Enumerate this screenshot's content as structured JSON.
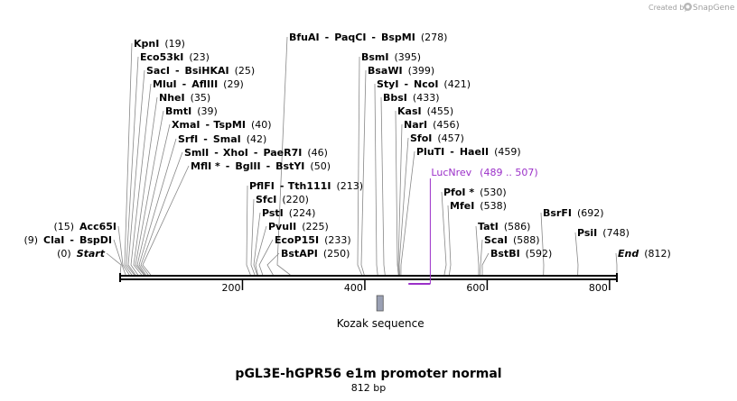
{
  "header": {
    "created_by": "Created by",
    "brand": "SnapGene"
  },
  "map": {
    "title": "pGL3E-hGPR56 e1m promoter normal",
    "length_label": "812 bp",
    "length_bp": 812,
    "ticks": [
      200,
      400,
      600,
      800
    ],
    "colors": {
      "backbone": "#000000",
      "primer": "#9b30c8",
      "feature": "#9aa0b4",
      "line": "#888888"
    }
  },
  "features": [
    {
      "name": "Kozak sequence",
      "start": 421,
      "end": 430
    }
  ],
  "primers": [
    {
      "name": "LucNrev",
      "range": "(489 .. 507)",
      "start": 489,
      "end": 507
    }
  ],
  "sites_left": [
    {
      "parts": [
        "(0)",
        "Start"
      ],
      "pos": 0,
      "italic": true
    },
    {
      "parts": [
        "(9)",
        "ClaI",
        "-",
        "BspDI"
      ],
      "pos": 9
    },
    {
      "parts": [
        "(15)",
        "Acc65I"
      ],
      "pos": 15
    }
  ],
  "sites": [
    {
      "parts": [
        "KpnI",
        "(19)"
      ],
      "pos": 19
    },
    {
      "parts": [
        "Eco53kI",
        "(23)"
      ],
      "pos": 23
    },
    {
      "parts": [
        "SacI",
        "-",
        "BsiHKAI",
        "(25)"
      ],
      "pos": 25
    },
    {
      "parts": [
        "MluI",
        "-",
        "AflIII",
        "(29)"
      ],
      "pos": 29
    },
    {
      "parts": [
        "NheI",
        "(35)"
      ],
      "pos": 35
    },
    {
      "parts": [
        "BmtI",
        "(39)"
      ],
      "pos": 39
    },
    {
      "parts": [
        "XmaI",
        "-",
        "TspMI",
        "(40)"
      ],
      "pos": 40
    },
    {
      "parts": [
        "SrfI",
        "-",
        "SmaI",
        "(42)"
      ],
      "pos": 42
    },
    {
      "parts": [
        "SmlI",
        "-",
        "XhoI",
        "-",
        "PaeR7I",
        "(46)"
      ],
      "pos": 46
    },
    {
      "parts": [
        "MflI *",
        "-",
        "BglII",
        "-",
        "BstYI",
        "(50)"
      ],
      "pos": 50
    },
    {
      "parts": [
        "PflFI",
        "-",
        "Tth111I",
        "(213)"
      ],
      "pos": 213
    },
    {
      "parts": [
        "SfcI",
        "(220)"
      ],
      "pos": 220
    },
    {
      "parts": [
        "PstI",
        "(224)"
      ],
      "pos": 224
    },
    {
      "parts": [
        "PvuII",
        "(225)"
      ],
      "pos": 225
    },
    {
      "parts": [
        "EcoP15I",
        "(233)"
      ],
      "pos": 233
    },
    {
      "parts": [
        "BstAPI",
        "(250)"
      ],
      "pos": 250
    },
    {
      "parts": [
        "BfuAI",
        "-",
        "PaqCI",
        "-",
        "BspMI",
        "(278)"
      ],
      "pos": 278
    },
    {
      "parts": [
        "BsmI",
        "(395)"
      ],
      "pos": 395
    },
    {
      "parts": [
        "BsaWI",
        "(399)"
      ],
      "pos": 399
    },
    {
      "parts": [
        "StyI",
        "-",
        "NcoI",
        "(421)"
      ],
      "pos": 421
    },
    {
      "parts": [
        "BbsI",
        "(433)"
      ],
      "pos": 433
    },
    {
      "parts": [
        "KasI",
        "(455)"
      ],
      "pos": 455
    },
    {
      "parts": [
        "NarI",
        "(456)"
      ],
      "pos": 456
    },
    {
      "parts": [
        "SfoI",
        "(457)"
      ],
      "pos": 457
    },
    {
      "parts": [
        "PluTI",
        "-",
        "HaeII",
        "(459)"
      ],
      "pos": 459
    },
    {
      "parts": [
        "PfoI *",
        "(530)"
      ],
      "pos": 530
    },
    {
      "parts": [
        "MfeI",
        "(538)"
      ],
      "pos": 538
    },
    {
      "parts": [
        "TatI",
        "(586)"
      ],
      "pos": 586
    },
    {
      "parts": [
        "ScaI",
        "(588)"
      ],
      "pos": 588
    },
    {
      "parts": [
        "BstBI",
        "(592)"
      ],
      "pos": 592
    },
    {
      "parts": [
        "BsrFI",
        "(692)"
      ],
      "pos": 692
    },
    {
      "parts": [
        "PsiI",
        "(748)"
      ],
      "pos": 748
    },
    {
      "parts": [
        "End",
        "(812)"
      ],
      "pos": 812,
      "italic": true
    }
  ]
}
